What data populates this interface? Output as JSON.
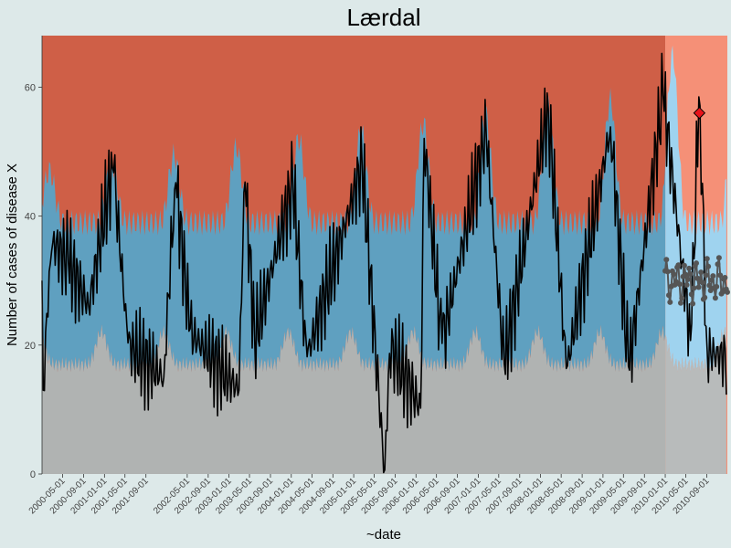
{
  "chart_data": {
    "type": "line",
    "title": "Lærdal",
    "xlabel": "~date",
    "ylabel": "Number of cases of disease X",
    "y_ticks": [
      0,
      20,
      40,
      60
    ],
    "ylim": [
      0,
      68
    ],
    "x_range": [
      "2000-01-01",
      "2010-12-31"
    ],
    "x_ticks": [
      "2000-05-01",
      "2000-09-01",
      "2001-01-01",
      "2001-05-01",
      "2001-09-01",
      "2002-05-01",
      "2002-09-01",
      "2003-01-01",
      "2003-05-01",
      "2003-09-01",
      "2004-01-01",
      "2004-05-01",
      "2004-09-01",
      "2005-01-01",
      "2005-05-01",
      "2005-09-01",
      "2006-01-01",
      "2006-05-01",
      "2006-09-01",
      "2007-01-01",
      "2007-05-01",
      "2007-09-01",
      "2008-01-01",
      "2008-05-01",
      "2008-09-01",
      "2009-01-01",
      "2009-05-01",
      "2009-09-01",
      "2010-01-01",
      "2010-05-01",
      "2010-09-01"
    ],
    "baseline_end_date": "2010-01-01",
    "grid": false,
    "legend": "none",
    "zones": {
      "low_color": "#b0b3b2",
      "normal_color": "#5fa0c0",
      "high_color": "#cf5f47",
      "high_color_current": "#f59077",
      "normal_color_current": "#9fd3ef",
      "low_color_current": "#b8bbbb"
    },
    "seasonal_threshold": {
      "description_omitted": true,
      "low_trough": 17,
      "low_peak": 22,
      "high_trough": 39,
      "high_peak_start": 47,
      "high_peak_end": 58,
      "high_peak_current": 65
    },
    "series": [
      {
        "values_comment_omitted": true,
        "line_color": "#000000",
        "anchor_points": [
          {
            "x": "2000-01-01",
            "y": 30
          },
          {
            "x": "2000-01-08",
            "y": 13
          },
          {
            "x": "2000-01-22",
            "y": 22
          },
          {
            "x": "2000-03-01",
            "y": 36
          },
          {
            "x": "2000-06-01",
            "y": 33
          },
          {
            "x": "2000-10-01",
            "y": 26
          },
          {
            "x": "2001-02-20",
            "y": 48
          },
          {
            "x": "2001-05-20",
            "y": 20
          },
          {
            "x": "2001-12-15",
            "y": 15
          },
          {
            "x": "2002-02-20",
            "y": 46
          },
          {
            "x": "2002-05-20",
            "y": 22
          },
          {
            "x": "2003-03-01",
            "y": 13
          },
          {
            "x": "2003-04-01",
            "y": 47
          },
          {
            "x": "2003-06-01",
            "y": 21
          },
          {
            "x": "2004-01-10",
            "y": 45
          },
          {
            "x": "2004-04-01",
            "y": 18
          },
          {
            "x": "2005-02-20",
            "y": 48
          },
          {
            "x": "2005-07-01",
            "y": 0
          },
          {
            "x": "2005-08-01",
            "y": 20
          },
          {
            "x": "2006-02-15",
            "y": 53
          },
          {
            "x": "2006-02-01",
            "y": 10
          },
          {
            "x": "2006-06-01",
            "y": 20
          },
          {
            "x": "2007-02-15",
            "y": 53
          },
          {
            "x": "2007-06-01",
            "y": 17
          },
          {
            "x": "2008-02-15",
            "y": 57
          },
          {
            "x": "2008-06-01",
            "y": 16
          },
          {
            "x": "2009-02-15",
            "y": 54
          },
          {
            "x": "2009-06-01",
            "y": 16
          },
          {
            "x": "2009-12-20",
            "y": 59
          },
          {
            "x": "2010-06-01",
            "y": 20
          },
          {
            "x": "2010-07-20",
            "y": 61
          },
          {
            "x": "2010-09-01",
            "y": 19
          },
          {
            "x": "2010-12-31",
            "y": 18
          }
        ]
      }
    ],
    "current_year_expected": {
      "marker_color": "#555555",
      "range": [
        26,
        34
      ]
    },
    "outbreak_marker": {
      "x": "2010-07-20",
      "y": 56,
      "color": "#e8131a"
    }
  }
}
